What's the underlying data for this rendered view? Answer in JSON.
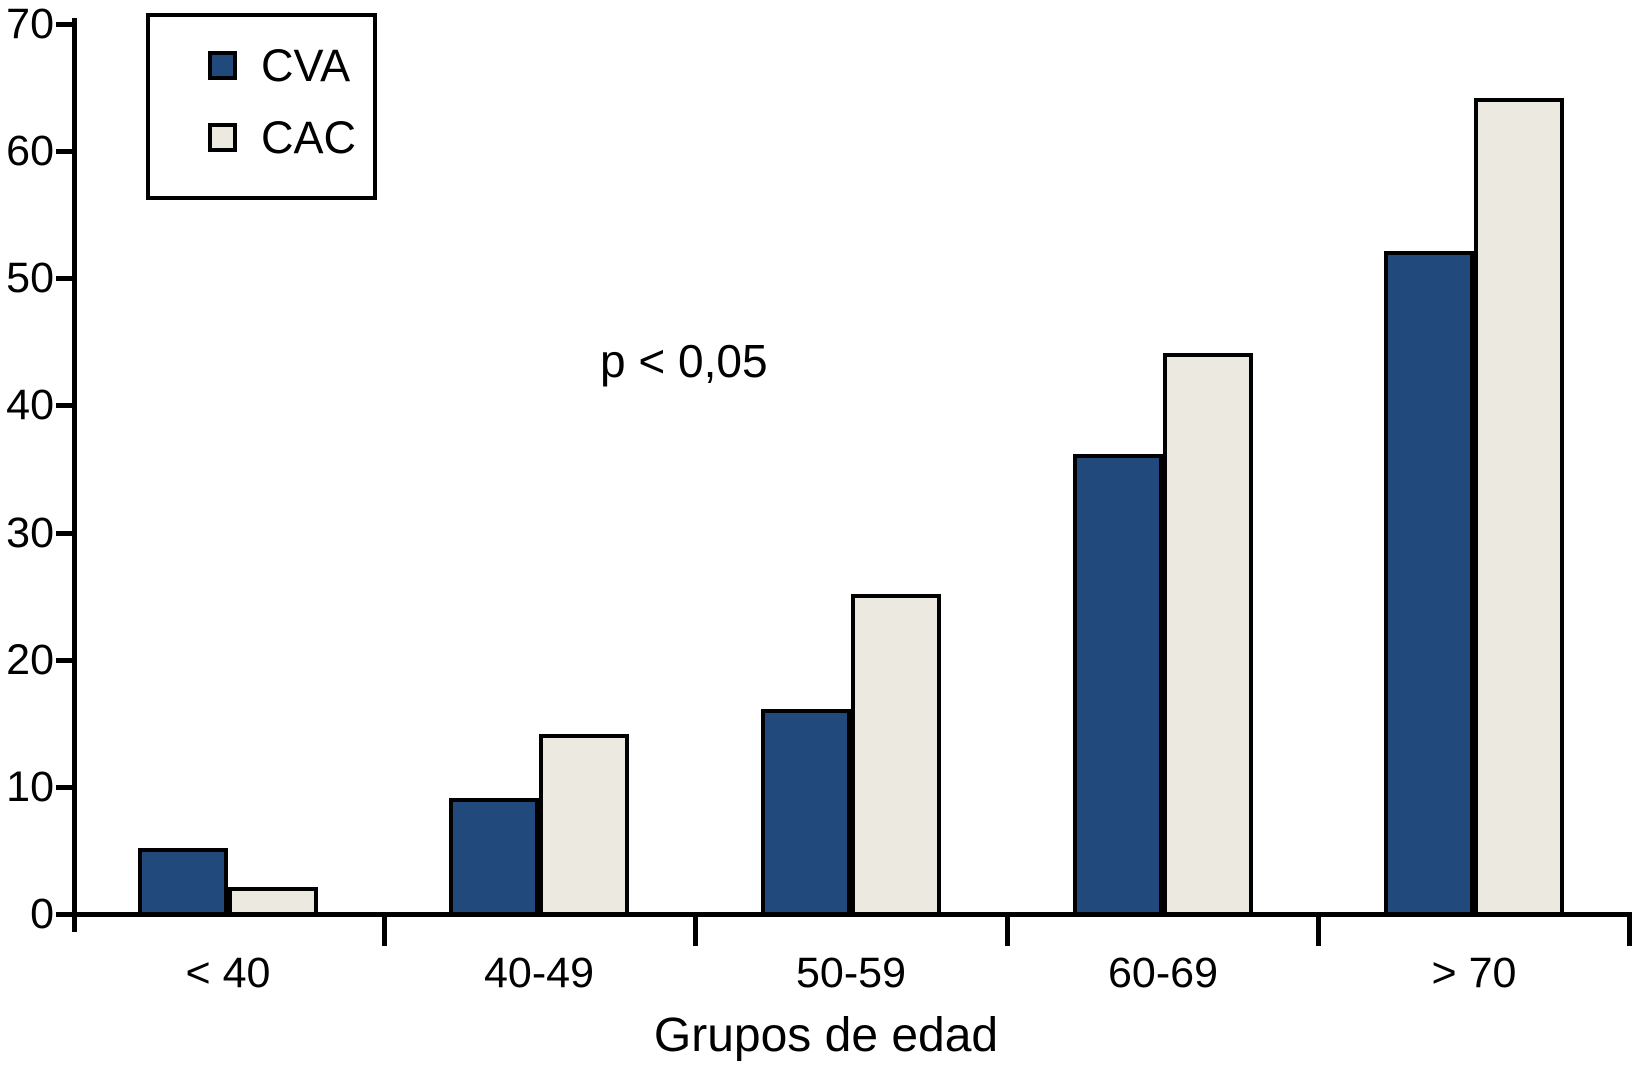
{
  "chart_data": {
    "type": "bar",
    "title": "",
    "xlabel": "Grupos de edad",
    "ylabel": "",
    "categories": [
      "< 40",
      "40-49",
      "50-59",
      "60-69",
      "> 70"
    ],
    "series": [
      {
        "name": "CVA",
        "color": "#21497C",
        "values": [
          5,
          9,
          16,
          36,
          52
        ]
      },
      {
        "name": "CAC",
        "color": "#ECEAE0",
        "values": [
          2,
          14,
          25,
          44,
          64
        ]
      }
    ],
    "ylim": [
      0,
      70
    ],
    "yticks": [
      0,
      10,
      20,
      30,
      40,
      50,
      60,
      70
    ],
    "annotation": "p < 0,05",
    "legend_position": "top-left",
    "grid": false,
    "axis_color": "#000000",
    "bar_border_color": "#000000",
    "background_color": "#FFFFFF"
  }
}
